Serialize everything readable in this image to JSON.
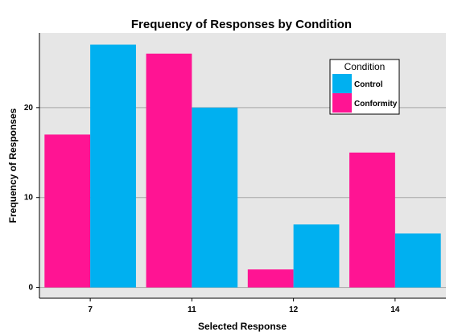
{
  "chart_data": {
    "type": "bar",
    "title": "Frequency of Responses by Condition",
    "xlabel": "Selected Response",
    "ylabel": "Frequency of Responses",
    "categories": [
      "7",
      "11",
      "12",
      "14"
    ],
    "series": [
      {
        "name": "Conformity",
        "values": [
          17,
          26,
          2,
          15
        ],
        "color": "#ff1493"
      },
      {
        "name": "Control",
        "values": [
          27,
          20,
          7,
          6
        ],
        "color": "#00b0f0"
      }
    ],
    "ylim": [
      -1.2,
      28.3
    ],
    "yticks": [
      0,
      10,
      20
    ],
    "grid": true,
    "legend": {
      "title": "Condition",
      "position": "top-right",
      "order": [
        "Control",
        "Conformity"
      ]
    },
    "colors": {
      "panel_background": "#e6e6e6",
      "grid_line": "#a6a6a6"
    }
  }
}
